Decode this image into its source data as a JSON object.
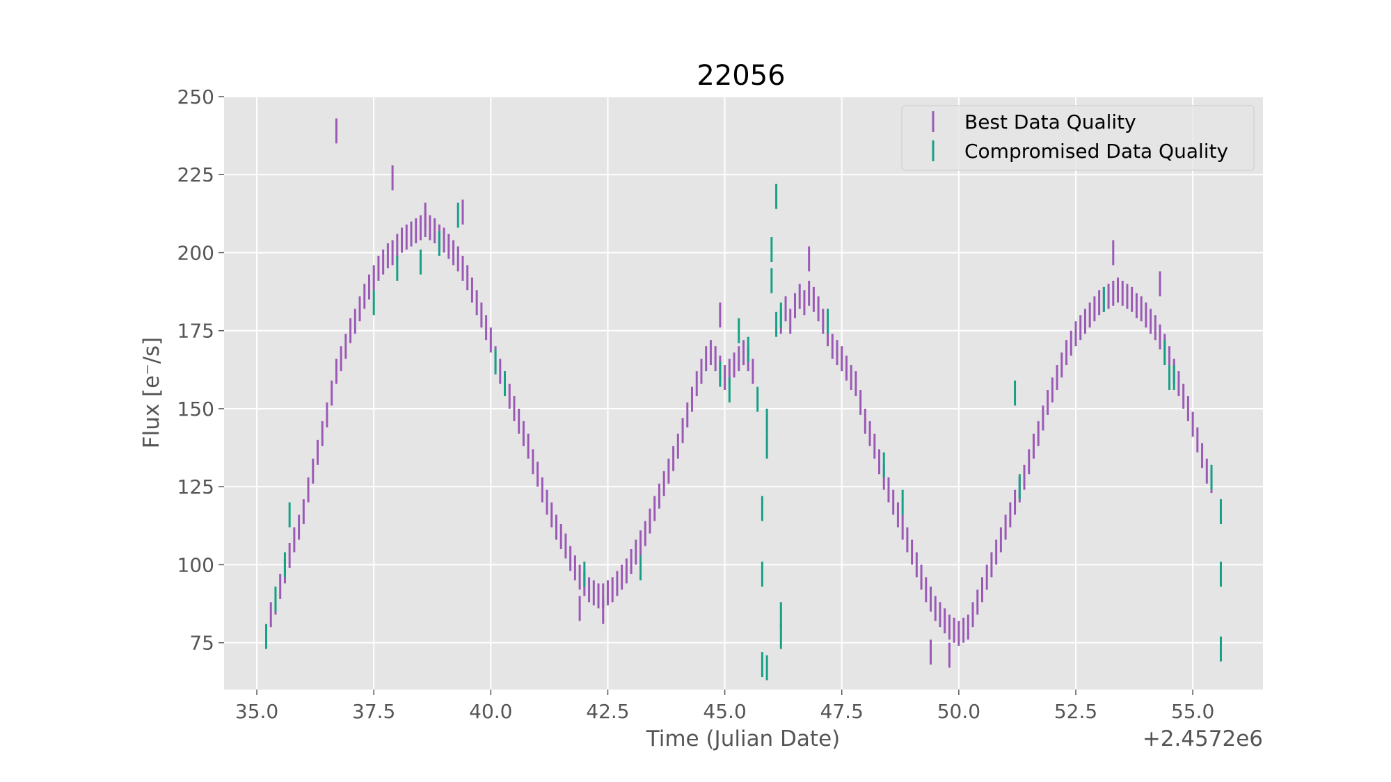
{
  "chart_data": {
    "type": "scatter",
    "title": "22056",
    "xlabel": "Time (Julian Date)",
    "ylabel": "Flux [e⁻/s]",
    "x_offset_label": "+2.4572e6",
    "xlim": [
      34.3,
      56.5
    ],
    "ylim": [
      60,
      250
    ],
    "x_ticks": [
      35.0,
      37.5,
      40.0,
      42.5,
      45.0,
      47.5,
      50.0,
      52.5,
      55.0
    ],
    "x_tick_labels": [
      "35.0",
      "37.5",
      "40.0",
      "42.5",
      "45.0",
      "47.5",
      "50.0",
      "52.5",
      "55.0"
    ],
    "y_ticks": [
      75,
      100,
      125,
      150,
      175,
      200,
      225,
      250
    ],
    "y_tick_labels": [
      "75",
      "100",
      "125",
      "150",
      "175",
      "200",
      "225",
      "250"
    ],
    "grid": true,
    "legend_position": "top-right",
    "colors": {
      "background": "#e5e5e5",
      "grid": "#ffffff",
      "best": "#9b59b6",
      "compromised": "#16a085"
    },
    "series": [
      {
        "name": "Best Data Quality",
        "color": "#9b59b6",
        "points": [
          [
            35.3,
            84
          ],
          [
            35.4,
            88
          ],
          [
            35.5,
            93
          ],
          [
            35.6,
            98
          ],
          [
            35.7,
            103
          ],
          [
            35.8,
            108
          ],
          [
            35.9,
            112
          ],
          [
            36.0,
            117
          ],
          [
            36.1,
            124
          ],
          [
            36.2,
            130
          ],
          [
            36.3,
            136
          ],
          [
            36.4,
            142
          ],
          [
            36.5,
            148
          ],
          [
            36.6,
            155
          ],
          [
            36.7,
            162
          ],
          [
            36.8,
            166
          ],
          [
            36.9,
            170
          ],
          [
            37.0,
            175
          ],
          [
            37.1,
            178
          ],
          [
            37.2,
            182
          ],
          [
            37.3,
            186
          ],
          [
            37.4,
            189
          ],
          [
            37.5,
            192
          ],
          [
            37.6,
            195
          ],
          [
            37.7,
            197
          ],
          [
            37.8,
            199
          ],
          [
            37.9,
            200
          ],
          [
            38.0,
            202
          ],
          [
            38.1,
            204
          ],
          [
            38.2,
            205
          ],
          [
            38.3,
            206
          ],
          [
            38.4,
            207
          ],
          [
            38.5,
            208
          ],
          [
            38.6,
            209
          ],
          [
            38.7,
            208
          ],
          [
            38.8,
            207
          ],
          [
            38.9,
            205
          ],
          [
            39.0,
            204
          ],
          [
            39.1,
            202
          ],
          [
            39.2,
            200
          ],
          [
            39.3,
            198
          ],
          [
            39.4,
            195
          ],
          [
            39.5,
            192
          ],
          [
            39.6,
            188
          ],
          [
            39.7,
            184
          ],
          [
            39.8,
            180
          ],
          [
            39.9,
            176
          ],
          [
            40.0,
            172
          ],
          [
            40.1,
            166
          ],
          [
            40.2,
            162
          ],
          [
            40.3,
            158
          ],
          [
            40.4,
            154
          ],
          [
            40.5,
            150
          ],
          [
            40.6,
            146
          ],
          [
            40.7,
            142
          ],
          [
            40.8,
            138
          ],
          [
            40.9,
            133
          ],
          [
            41.0,
            129
          ],
          [
            41.1,
            124
          ],
          [
            41.2,
            120
          ],
          [
            41.3,
            116
          ],
          [
            41.4,
            112
          ],
          [
            41.5,
            109
          ],
          [
            41.6,
            106
          ],
          [
            41.7,
            102
          ],
          [
            41.8,
            99
          ],
          [
            41.9,
            96
          ],
          [
            42.0,
            94
          ],
          [
            42.1,
            92
          ],
          [
            42.2,
            91
          ],
          [
            42.3,
            90
          ],
          [
            42.4,
            90
          ],
          [
            42.5,
            91
          ],
          [
            42.6,
            92
          ],
          [
            42.7,
            94
          ],
          [
            42.8,
            96
          ],
          [
            42.9,
            98
          ],
          [
            43.0,
            101
          ],
          [
            43.1,
            104
          ],
          [
            43.2,
            107
          ],
          [
            43.3,
            110
          ],
          [
            43.4,
            114
          ],
          [
            43.5,
            118
          ],
          [
            43.6,
            122
          ],
          [
            43.7,
            126
          ],
          [
            43.8,
            130
          ],
          [
            43.9,
            134
          ],
          [
            44.0,
            138
          ],
          [
            44.1,
            143
          ],
          [
            44.2,
            148
          ],
          [
            44.3,
            153
          ],
          [
            44.4,
            158
          ],
          [
            44.5,
            162
          ],
          [
            44.6,
            166
          ],
          [
            44.7,
            168
          ],
          [
            44.8,
            166
          ],
          [
            44.9,
            163
          ],
          [
            45.0,
            160
          ],
          [
            45.1,
            162
          ],
          [
            45.2,
            164
          ],
          [
            45.3,
            166
          ],
          [
            45.4,
            168
          ],
          [
            45.5,
            166
          ],
          [
            45.6,
            162
          ],
          [
            46.2,
            178
          ],
          [
            46.3,
            182
          ],
          [
            46.4,
            178
          ],
          [
            46.5,
            183
          ],
          [
            46.6,
            186
          ],
          [
            46.7,
            184
          ],
          [
            46.8,
            187
          ],
          [
            46.9,
            185
          ],
          [
            47.0,
            182
          ],
          [
            47.1,
            178
          ],
          [
            47.2,
            174
          ],
          [
            47.3,
            170
          ],
          [
            47.4,
            168
          ],
          [
            47.5,
            166
          ],
          [
            47.6,
            163
          ],
          [
            47.7,
            160
          ],
          [
            47.8,
            158
          ],
          [
            47.9,
            152
          ],
          [
            48.0,
            146
          ],
          [
            48.1,
            142
          ],
          [
            48.2,
            138
          ],
          [
            48.3,
            133
          ],
          [
            48.4,
            128
          ],
          [
            48.5,
            124
          ],
          [
            48.6,
            120
          ],
          [
            48.7,
            116
          ],
          [
            48.8,
            112
          ],
          [
            48.9,
            108
          ],
          [
            49.0,
            104
          ],
          [
            49.1,
            100
          ],
          [
            49.2,
            96
          ],
          [
            49.3,
            92
          ],
          [
            49.4,
            89
          ],
          [
            49.5,
            86
          ],
          [
            49.6,
            84
          ],
          [
            49.7,
            82
          ],
          [
            49.8,
            80
          ],
          [
            49.9,
            79
          ],
          [
            50.0,
            78
          ],
          [
            50.1,
            79
          ],
          [
            50.2,
            80
          ],
          [
            50.3,
            84
          ],
          [
            50.4,
            88
          ],
          [
            50.5,
            92
          ],
          [
            50.6,
            96
          ],
          [
            50.7,
            100
          ],
          [
            50.8,
            104
          ],
          [
            50.9,
            108
          ],
          [
            51.0,
            112
          ],
          [
            51.1,
            116
          ],
          [
            51.2,
            120
          ],
          [
            51.3,
            124
          ],
          [
            51.4,
            128
          ],
          [
            51.5,
            133
          ],
          [
            51.6,
            138
          ],
          [
            51.7,
            142
          ],
          [
            51.8,
            147
          ],
          [
            51.9,
            152
          ],
          [
            52.0,
            156
          ],
          [
            52.1,
            160
          ],
          [
            52.2,
            164
          ],
          [
            52.3,
            168
          ],
          [
            52.4,
            171
          ],
          [
            52.5,
            174
          ],
          [
            52.6,
            176
          ],
          [
            52.7,
            178
          ],
          [
            52.8,
            180
          ],
          [
            52.9,
            182
          ],
          [
            53.0,
            184
          ],
          [
            53.1,
            185
          ],
          [
            53.2,
            186
          ],
          [
            53.3,
            187
          ],
          [
            53.4,
            188
          ],
          [
            53.5,
            187
          ],
          [
            53.6,
            186
          ],
          [
            53.7,
            185
          ],
          [
            53.8,
            183
          ],
          [
            53.9,
            182
          ],
          [
            54.0,
            180
          ],
          [
            54.1,
            178
          ],
          [
            54.2,
            176
          ],
          [
            54.3,
            173
          ],
          [
            54.4,
            170
          ],
          [
            54.5,
            166
          ],
          [
            54.6,
            162
          ],
          [
            54.7,
            158
          ],
          [
            54.8,
            154
          ],
          [
            54.9,
            150
          ],
          [
            55.0,
            145
          ],
          [
            55.1,
            140
          ],
          [
            55.2,
            135
          ],
          [
            55.3,
            130
          ],
          [
            55.4,
            127
          ],
          [
            36.7,
            239
          ],
          [
            37.9,
            224
          ],
          [
            38.6,
            212
          ],
          [
            39.4,
            213
          ],
          [
            46.8,
            198
          ],
          [
            53.3,
            200
          ],
          [
            54.3,
            190
          ],
          [
            44.9,
            180
          ],
          [
            41.9,
            86
          ],
          [
            42.4,
            85
          ],
          [
            49.4,
            72
          ],
          [
            49.8,
            71
          ]
        ]
      },
      {
        "name": "Compromised Data Quality",
        "color": "#16a085",
        "points": [
          [
            35.2,
            77
          ],
          [
            35.4,
            89
          ],
          [
            35.6,
            100
          ],
          [
            35.7,
            116
          ],
          [
            37.5,
            184
          ],
          [
            38.0,
            195
          ],
          [
            38.5,
            197
          ],
          [
            38.9,
            203
          ],
          [
            39.3,
            212
          ],
          [
            40.1,
            165
          ],
          [
            40.3,
            158
          ],
          [
            42.0,
            97
          ],
          [
            43.2,
            99
          ],
          [
            44.9,
            161
          ],
          [
            45.1,
            156
          ],
          [
            45.3,
            175
          ],
          [
            45.5,
            169
          ],
          [
            45.7,
            153
          ],
          [
            45.8,
            118
          ],
          [
            45.8,
            97
          ],
          [
            45.8,
            68
          ],
          [
            45.9,
            67
          ],
          [
            45.9,
            138
          ],
          [
            45.9,
            146
          ],
          [
            46.0,
            191
          ],
          [
            46.0,
            201
          ],
          [
            46.1,
            177
          ],
          [
            46.2,
            180
          ],
          [
            46.1,
            218
          ],
          [
            46.2,
            84
          ],
          [
            46.2,
            77
          ],
          [
            47.2,
            178
          ],
          [
            48.4,
            132
          ],
          [
            48.8,
            120
          ],
          [
            51.2,
            155
          ],
          [
            51.3,
            125
          ],
          [
            53.1,
            185
          ],
          [
            54.4,
            168
          ],
          [
            54.5,
            160
          ],
          [
            54.6,
            160
          ],
          [
            55.4,
            128
          ],
          [
            55.6,
            117
          ],
          [
            55.6,
            97
          ],
          [
            55.6,
            73
          ]
        ]
      }
    ]
  }
}
